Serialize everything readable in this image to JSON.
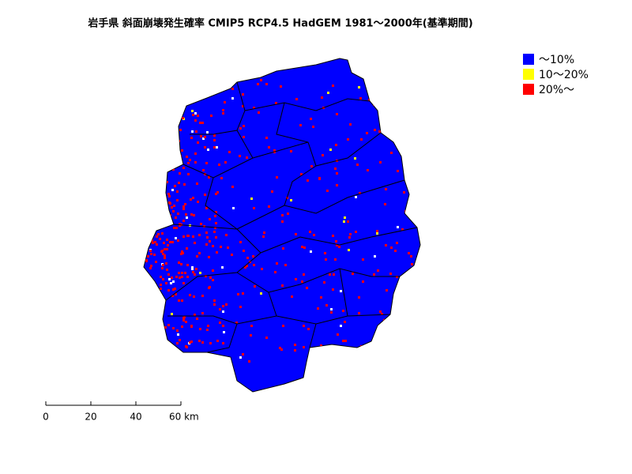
{
  "title": "岩手県 斜面崩壊発生確率 CMIP5 RCP4.5 HadGEM 1981～2000年(基準期間)",
  "legend": [
    {
      "label": "～10%",
      "color": "#0000ff"
    },
    {
      "label": "10～20%",
      "color": "#ffff00"
    },
    {
      "label": "20%～",
      "color": "#ff0000"
    }
  ],
  "scale_bar": {
    "labels": [
      "0",
      "20",
      "40",
      "60 km"
    ]
  }
}
